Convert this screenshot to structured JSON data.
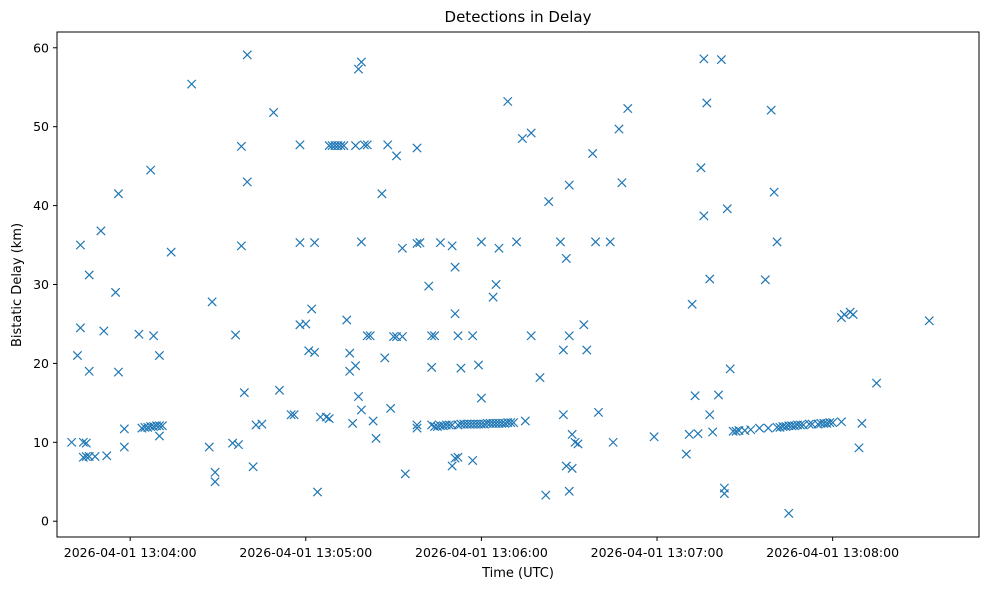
{
  "chart_data": {
    "type": "scatter",
    "title": "Detections in Delay",
    "xlabel": "Time (UTC)",
    "ylabel": "Bistatic Delay (km)",
    "x_ticks": [
      "2026-04-01 13:04:00",
      "2026-04-01 13:05:00",
      "2026-04-01 13:06:00",
      "2026-04-01 13:07:00",
      "2026-04-01 13:08:00"
    ],
    "y_ticks": [
      "0",
      "10",
      "20",
      "30",
      "40",
      "50",
      "60"
    ],
    "xlim": [
      "2026-04-01 13:03:35",
      "2026-04-01 13:08:50"
    ],
    "ylim": [
      -2.0,
      62.0
    ],
    "grid": false,
    "marker": "x",
    "color": "#1f77b4",
    "points": [
      [
        "2026-04-01 13:03:40",
        10.0
      ],
      [
        "2026-04-01 13:03:42",
        21.0
      ],
      [
        "2026-04-01 13:03:43",
        35.0
      ],
      [
        "2026-04-01 13:03:43",
        24.5
      ],
      [
        "2026-04-01 13:03:44",
        10.0
      ],
      [
        "2026-04-01 13:03:44",
        8.1
      ],
      [
        "2026-04-01 13:03:45",
        9.9
      ],
      [
        "2026-04-01 13:03:45",
        8.2
      ],
      [
        "2026-04-01 13:03:46",
        19.0
      ],
      [
        "2026-04-01 13:03:46",
        31.2
      ],
      [
        "2026-04-01 13:03:46",
        8.2
      ],
      [
        "2026-04-01 13:03:48",
        8.2
      ],
      [
        "2026-04-01 13:03:50",
        36.8
      ],
      [
        "2026-04-01 13:03:51",
        24.1
      ],
      [
        "2026-04-01 13:03:52",
        8.3
      ],
      [
        "2026-04-01 13:03:55",
        29.0
      ],
      [
        "2026-04-01 13:03:56",
        41.5
      ],
      [
        "2026-04-01 13:03:56",
        18.9
      ],
      [
        "2026-04-01 13:03:58",
        9.4
      ],
      [
        "2026-04-01 13:03:58",
        11.7
      ],
      [
        "2026-04-01 13:04:03",
        23.7
      ],
      [
        "2026-04-01 13:04:04",
        11.8
      ],
      [
        "2026-04-01 13:04:05",
        11.9
      ],
      [
        "2026-04-01 13:04:06",
        11.9
      ],
      [
        "2026-04-01 13:04:07",
        44.5
      ],
      [
        "2026-04-01 13:04:07",
        12.0
      ],
      [
        "2026-04-01 13:04:08",
        23.5
      ],
      [
        "2026-04-01 13:04:08",
        12.0
      ],
      [
        "2026-04-01 13:04:09",
        12.1
      ],
      [
        "2026-04-01 13:04:10",
        12.1
      ],
      [
        "2026-04-01 13:04:10",
        21.0
      ],
      [
        "2026-04-01 13:04:10",
        10.8
      ],
      [
        "2026-04-01 13:04:11",
        12.1
      ],
      [
        "2026-04-01 13:04:14",
        34.1
      ],
      [
        "2026-04-01 13:04:21",
        55.4
      ],
      [
        "2026-04-01 13:04:27",
        9.4
      ],
      [
        "2026-04-01 13:04:28",
        27.8
      ],
      [
        "2026-04-01 13:04:29",
        6.2
      ],
      [
        "2026-04-01 13:04:29",
        5.0
      ],
      [
        "2026-04-01 13:04:35",
        9.9
      ],
      [
        "2026-04-01 13:04:36",
        23.6
      ],
      [
        "2026-04-01 13:04:37",
        9.7
      ],
      [
        "2026-04-01 13:04:38",
        34.9
      ],
      [
        "2026-04-01 13:04:38",
        47.5
      ],
      [
        "2026-04-01 13:04:39",
        16.3
      ],
      [
        "2026-04-01 13:04:40",
        59.1
      ],
      [
        "2026-04-01 13:04:40",
        43.0
      ],
      [
        "2026-04-01 13:04:42",
        6.9
      ],
      [
        "2026-04-01 13:04:43",
        12.2
      ],
      [
        "2026-04-01 13:04:45",
        12.3
      ],
      [
        "2026-04-01 13:04:49",
        51.8
      ],
      [
        "2026-04-01 13:04:51",
        16.6
      ],
      [
        "2026-04-01 13:04:55",
        13.5
      ],
      [
        "2026-04-01 13:04:56",
        13.5
      ],
      [
        "2026-04-01 13:04:58",
        24.9
      ],
      [
        "2026-04-01 13:04:58",
        35.3
      ],
      [
        "2026-04-01 13:04:58",
        47.7
      ],
      [
        "2026-04-01 13:05:00",
        25.0
      ],
      [
        "2026-04-01 13:05:01",
        21.6
      ],
      [
        "2026-04-01 13:05:02",
        26.9
      ],
      [
        "2026-04-01 13:05:03",
        21.4
      ],
      [
        "2026-04-01 13:05:03",
        35.3
      ],
      [
        "2026-04-01 13:05:04",
        3.7
      ],
      [
        "2026-04-01 13:05:05",
        13.2
      ],
      [
        "2026-04-01 13:05:07",
        13.2
      ],
      [
        "2026-04-01 13:05:08",
        47.6
      ],
      [
        "2026-04-01 13:05:08",
        13.0
      ],
      [
        "2026-04-01 13:05:09",
        47.6
      ],
      [
        "2026-04-01 13:05:10",
        47.6
      ],
      [
        "2026-04-01 13:05:11",
        47.6
      ],
      [
        "2026-04-01 13:05:12",
        47.6
      ],
      [
        "2026-04-01 13:05:13",
        47.6
      ],
      [
        "2026-04-01 13:05:14",
        25.5
      ],
      [
        "2026-04-01 13:05:15",
        21.3
      ],
      [
        "2026-04-01 13:05:15",
        19.0
      ],
      [
        "2026-04-01 13:05:16",
        12.4
      ],
      [
        "2026-04-01 13:05:17",
        47.6
      ],
      [
        "2026-04-01 13:05:17",
        19.7
      ],
      [
        "2026-04-01 13:05:18",
        57.3
      ],
      [
        "2026-04-01 13:05:18",
        15.8
      ],
      [
        "2026-04-01 13:05:19",
        58.2
      ],
      [
        "2026-04-01 13:05:19",
        35.4
      ],
      [
        "2026-04-01 13:05:19",
        14.1
      ],
      [
        "2026-04-01 13:05:20",
        47.7
      ],
      [
        "2026-04-01 13:05:21",
        47.7
      ],
      [
        "2026-04-01 13:05:21",
        23.5
      ],
      [
        "2026-04-01 13:05:22",
        23.5
      ],
      [
        "2026-04-01 13:05:23",
        12.7
      ],
      [
        "2026-04-01 13:05:24",
        10.5
      ],
      [
        "2026-04-01 13:05:26",
        41.5
      ],
      [
        "2026-04-01 13:05:27",
        20.7
      ],
      [
        "2026-04-01 13:05:28",
        47.7
      ],
      [
        "2026-04-01 13:05:29",
        14.3
      ],
      [
        "2026-04-01 13:05:30",
        23.4
      ],
      [
        "2026-04-01 13:05:31",
        46.3
      ],
      [
        "2026-04-01 13:05:31",
        23.4
      ],
      [
        "2026-04-01 13:05:33",
        23.4
      ],
      [
        "2026-04-01 13:05:33",
        34.6
      ],
      [
        "2026-04-01 13:05:34",
        6.0
      ],
      [
        "2026-04-01 13:05:38",
        35.2
      ],
      [
        "2026-04-01 13:05:38",
        12.2
      ],
      [
        "2026-04-01 13:05:38",
        11.8
      ],
      [
        "2026-04-01 13:05:39",
        35.3
      ],
      [
        "2026-04-01 13:05:38",
        47.3
      ],
      [
        "2026-04-01 13:05:42",
        29.8
      ],
      [
        "2026-04-01 13:05:43",
        23.5
      ],
      [
        "2026-04-01 13:05:43",
        19.5
      ],
      [
        "2026-04-01 13:05:43",
        12.2
      ],
      [
        "2026-04-01 13:05:44",
        23.5
      ],
      [
        "2026-04-01 13:05:44",
        12.0
      ],
      [
        "2026-04-01 13:05:45",
        12.0
      ],
      [
        "2026-04-01 13:05:46",
        35.3
      ],
      [
        "2026-04-01 13:05:46",
        12.1
      ],
      [
        "2026-04-01 13:05:47",
        12.1
      ],
      [
        "2026-04-01 13:05:48",
        12.2
      ],
      [
        "2026-04-01 13:05:49",
        12.2
      ],
      [
        "2026-04-01 13:05:50",
        34.9
      ],
      [
        "2026-04-01 13:05:50",
        12.2
      ],
      [
        "2026-04-01 13:05:50",
        7.0
      ],
      [
        "2026-04-01 13:05:51",
        32.2
      ],
      [
        "2026-04-01 13:05:51",
        26.3
      ],
      [
        "2026-04-01 13:05:51",
        8.0
      ],
      [
        "2026-04-01 13:05:52",
        23.5
      ],
      [
        "2026-04-01 13:05:52",
        12.2
      ],
      [
        "2026-04-01 13:05:52",
        8.1
      ],
      [
        "2026-04-01 13:05:53",
        19.4
      ],
      [
        "2026-04-01 13:05:53",
        12.3
      ],
      [
        "2026-04-01 13:05:54",
        12.3
      ],
      [
        "2026-04-01 13:05:55",
        12.3
      ],
      [
        "2026-04-01 13:05:56",
        12.3
      ],
      [
        "2026-04-01 13:05:57",
        23.5
      ],
      [
        "2026-04-01 13:05:57",
        12.3
      ],
      [
        "2026-04-01 13:05:57",
        7.7
      ],
      [
        "2026-04-01 13:05:58",
        12.3
      ],
      [
        "2026-04-01 13:05:59",
        19.8
      ],
      [
        "2026-04-01 13:05:59",
        12.3
      ],
      [
        "2026-04-01 13:06:00",
        35.4
      ],
      [
        "2026-04-01 13:06:00",
        15.6
      ],
      [
        "2026-04-01 13:06:00",
        12.3
      ],
      [
        "2026-04-01 13:06:01",
        12.3
      ],
      [
        "2026-04-01 13:06:02",
        12.4
      ],
      [
        "2026-04-01 13:06:03",
        12.4
      ],
      [
        "2026-04-01 13:06:04",
        28.4
      ],
      [
        "2026-04-01 13:06:04",
        12.4
      ],
      [
        "2026-04-01 13:06:05",
        30.0
      ],
      [
        "2026-04-01 13:06:05",
        12.4
      ],
      [
        "2026-04-01 13:06:06",
        34.6
      ],
      [
        "2026-04-01 13:06:06",
        12.4
      ],
      [
        "2026-04-01 13:06:07",
        12.4
      ],
      [
        "2026-04-01 13:06:08",
        12.4
      ],
      [
        "2026-04-01 13:06:09",
        53.2
      ],
      [
        "2026-04-01 13:06:09",
        12.5
      ],
      [
        "2026-04-01 13:06:10",
        12.5
      ],
      [
        "2026-04-01 13:06:11",
        12.5
      ],
      [
        "2026-04-01 13:06:12",
        35.4
      ],
      [
        "2026-04-01 13:06:14",
        48.5
      ],
      [
        "2026-04-01 13:06:15",
        12.7
      ],
      [
        "2026-04-01 13:06:17",
        49.2
      ],
      [
        "2026-04-01 13:06:17",
        23.5
      ],
      [
        "2026-04-01 13:06:20",
        18.2
      ],
      [
        "2026-04-01 13:06:22",
        3.3
      ],
      [
        "2026-04-01 13:06:23",
        40.5
      ],
      [
        "2026-04-01 13:06:27",
        35.4
      ],
      [
        "2026-04-01 13:06:28",
        21.7
      ],
      [
        "2026-04-01 13:06:28",
        13.5
      ],
      [
        "2026-04-01 13:06:29",
        33.3
      ],
      [
        "2026-04-01 13:06:29",
        7.0
      ],
      [
        "2026-04-01 13:06:30",
        42.6
      ],
      [
        "2026-04-01 13:06:30",
        23.5
      ],
      [
        "2026-04-01 13:06:30",
        3.8
      ],
      [
        "2026-04-01 13:06:31",
        11.0
      ],
      [
        "2026-04-01 13:06:31",
        6.7
      ],
      [
        "2026-04-01 13:06:32",
        10.0
      ],
      [
        "2026-04-01 13:06:33",
        9.8
      ],
      [
        "2026-04-01 13:06:35",
        24.9
      ],
      [
        "2026-04-01 13:06:36",
        21.7
      ],
      [
        "2026-04-01 13:06:38",
        46.6
      ],
      [
        "2026-04-01 13:06:39",
        35.4
      ],
      [
        "2026-04-01 13:06:40",
        13.8
      ],
      [
        "2026-04-01 13:06:44",
        35.4
      ],
      [
        "2026-04-01 13:06:45",
        10.0
      ],
      [
        "2026-04-01 13:06:47",
        49.7
      ],
      [
        "2026-04-01 13:06:48",
        42.9
      ],
      [
        "2026-04-01 13:06:50",
        52.3
      ],
      [
        "2026-04-01 13:06:59",
        10.7
      ],
      [
        "2026-04-01 13:07:10",
        8.5
      ],
      [
        "2026-04-01 13:07:11",
        11.0
      ],
      [
        "2026-04-01 13:07:12",
        27.5
      ],
      [
        "2026-04-01 13:07:13",
        15.9
      ],
      [
        "2026-04-01 13:07:14",
        11.1
      ],
      [
        "2026-04-01 13:07:15",
        44.8
      ],
      [
        "2026-04-01 13:07:16",
        38.7
      ],
      [
        "2026-04-01 13:07:16",
        58.6
      ],
      [
        "2026-04-01 13:07:17",
        53.0
      ],
      [
        "2026-04-01 13:07:18",
        13.5
      ],
      [
        "2026-04-01 13:07:18",
        30.7
      ],
      [
        "2026-04-01 13:07:19",
        11.3
      ],
      [
        "2026-04-01 13:07:21",
        16.0
      ],
      [
        "2026-04-01 13:07:22",
        58.5
      ],
      [
        "2026-04-01 13:07:23",
        3.5
      ],
      [
        "2026-04-01 13:07:23",
        4.2
      ],
      [
        "2026-04-01 13:07:24",
        39.6
      ],
      [
        "2026-04-01 13:07:25",
        19.3
      ],
      [
        "2026-04-01 13:07:26",
        11.4
      ],
      [
        "2026-04-01 13:07:27",
        11.4
      ],
      [
        "2026-04-01 13:07:28",
        11.5
      ],
      [
        "2026-04-01 13:07:30",
        11.5
      ],
      [
        "2026-04-01 13:07:32",
        11.6
      ],
      [
        "2026-04-01 13:07:35",
        11.8
      ],
      [
        "2026-04-01 13:07:37",
        30.6
      ],
      [
        "2026-04-01 13:07:38",
        11.8
      ],
      [
        "2026-04-01 13:07:39",
        52.1
      ],
      [
        "2026-04-01 13:07:40",
        41.7
      ],
      [
        "2026-04-01 13:07:41",
        35.4
      ],
      [
        "2026-04-01 13:07:41",
        11.9
      ],
      [
        "2026-04-01 13:07:42",
        11.9
      ],
      [
        "2026-04-01 13:07:43",
        12.0
      ],
      [
        "2026-04-01 13:07:44",
        12.0
      ],
      [
        "2026-04-01 13:07:45",
        12.1
      ],
      [
        "2026-04-01 13:07:45",
        1.0
      ],
      [
        "2026-04-01 13:07:46",
        12.1
      ],
      [
        "2026-04-01 13:07:47",
        12.1
      ],
      [
        "2026-04-01 13:07:48",
        12.2
      ],
      [
        "2026-04-01 13:07:49",
        12.2
      ],
      [
        "2026-04-01 13:07:50",
        12.2
      ],
      [
        "2026-04-01 13:07:52",
        12.3
      ],
      [
        "2026-04-01 13:07:53",
        12.3
      ],
      [
        "2026-04-01 13:07:55",
        12.3
      ],
      [
        "2026-04-01 13:07:56",
        12.4
      ],
      [
        "2026-04-01 13:07:57",
        12.4
      ],
      [
        "2026-04-01 13:07:58",
        12.4
      ],
      [
        "2026-04-01 13:07:59",
        12.5
      ],
      [
        "2026-04-01 13:08:00",
        12.5
      ],
      [
        "2026-04-01 13:08:03",
        12.6
      ],
      [
        "2026-04-01 13:08:03",
        25.8
      ],
      [
        "2026-04-01 13:08:04",
        26.2
      ],
      [
        "2026-04-01 13:08:06",
        26.5
      ],
      [
        "2026-04-01 13:08:07",
        26.2
      ],
      [
        "2026-04-01 13:08:09",
        9.3
      ],
      [
        "2026-04-01 13:08:10",
        12.4
      ],
      [
        "2026-04-01 13:08:15",
        17.5
      ],
      [
        "2026-04-01 13:08:33",
        25.4
      ]
    ]
  }
}
